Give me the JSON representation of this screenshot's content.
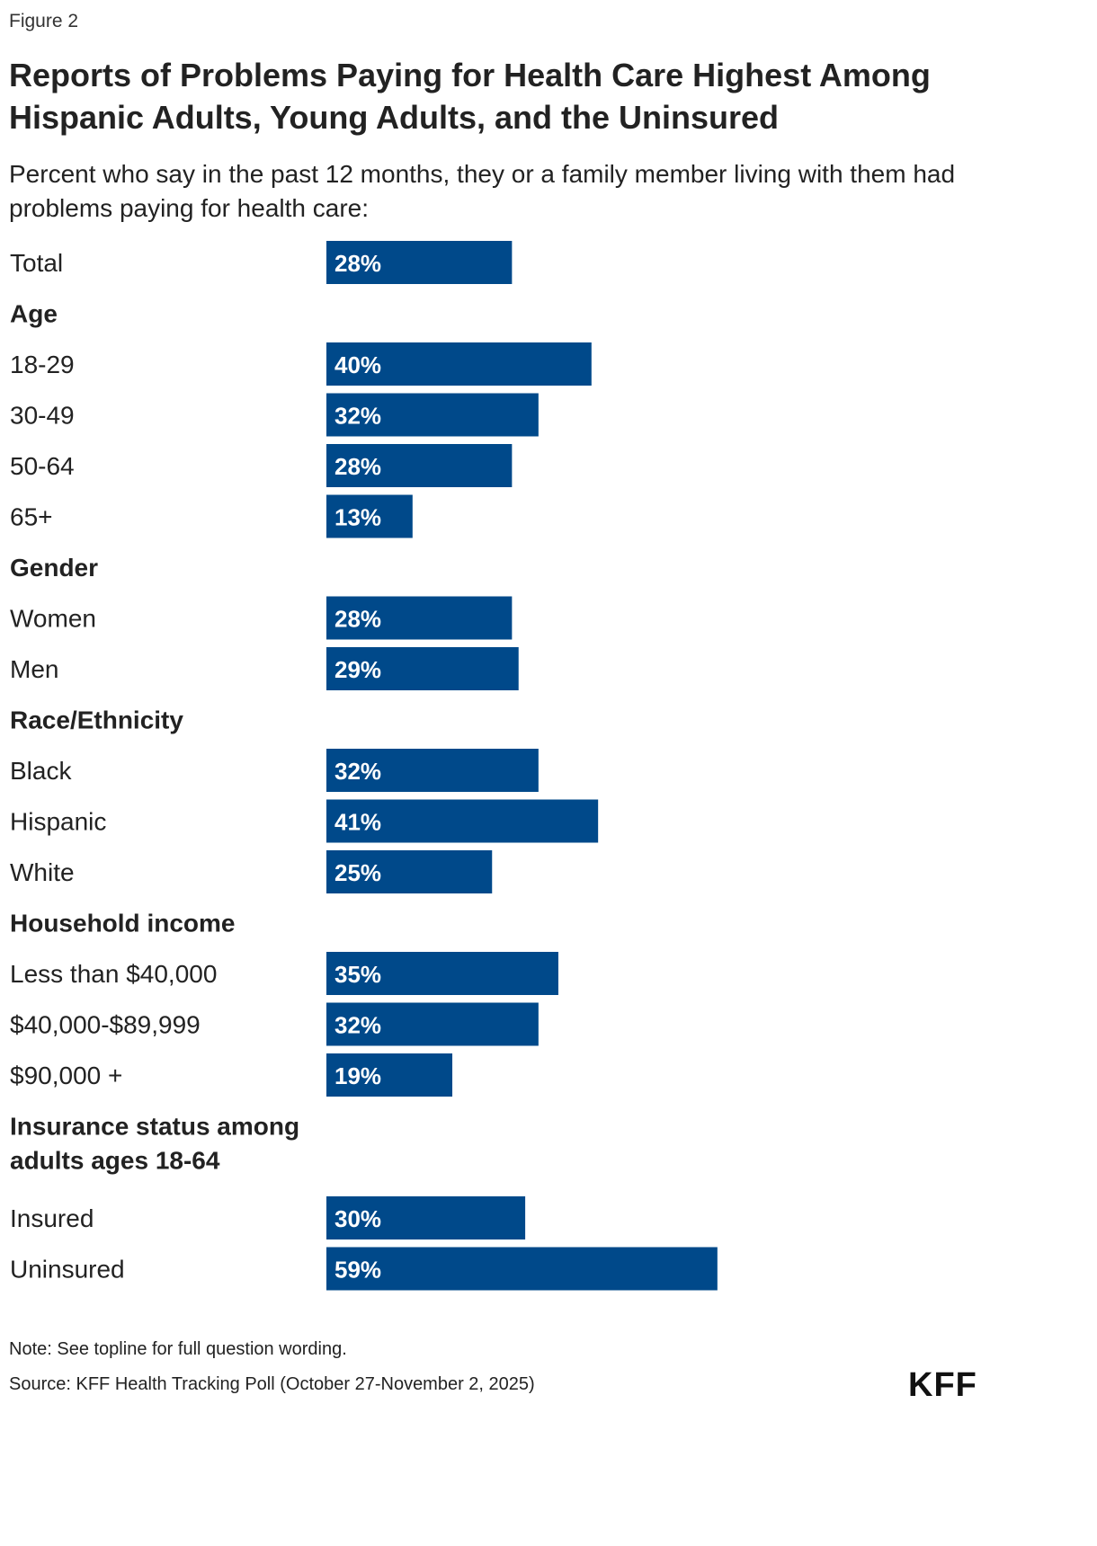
{
  "figure_label": "Figure 2",
  "title": "Reports of Problems Paying for Health Care Highest Among Hispanic Adults, Young Adults, and the Uninsured",
  "subtitle": "Percent who say in the past 12 months, they or a family member living with them had problems paying for health care:",
  "note": "Note: See topline for full question wording.",
  "source": "Source: KFF Health Tracking Poll (October 27-November 2, 2025)",
  "logo": "KFF",
  "colors": {
    "bar": "#00498a",
    "bar_label": "#ffffff",
    "text": "#222222"
  },
  "chart_data": {
    "type": "bar",
    "orientation": "horizontal",
    "value_suffix": "%",
    "xlim": [
      0,
      100
    ],
    "grid": false,
    "rows": [
      {
        "kind": "bar",
        "label": "Total",
        "value": 28
      },
      {
        "kind": "header",
        "label": "Age"
      },
      {
        "kind": "bar",
        "label": "18-29",
        "value": 40
      },
      {
        "kind": "bar",
        "label": "30-49",
        "value": 32
      },
      {
        "kind": "bar",
        "label": "50-64",
        "value": 28
      },
      {
        "kind": "bar",
        "label": "65+",
        "value": 13
      },
      {
        "kind": "header",
        "label": "Gender"
      },
      {
        "kind": "bar",
        "label": "Women",
        "value": 28
      },
      {
        "kind": "bar",
        "label": "Men",
        "value": 29
      },
      {
        "kind": "header",
        "label": "Race/Ethnicity"
      },
      {
        "kind": "bar",
        "label": "Black",
        "value": 32
      },
      {
        "kind": "bar",
        "label": "Hispanic",
        "value": 41
      },
      {
        "kind": "bar",
        "label": "White",
        "value": 25
      },
      {
        "kind": "header",
        "label": "Household income"
      },
      {
        "kind": "bar",
        "label": "Less than $40,000",
        "value": 35
      },
      {
        "kind": "bar",
        "label": "$40,000-$89,999",
        "value": 32
      },
      {
        "kind": "bar",
        "label": "$90,000 +",
        "value": 19
      },
      {
        "kind": "header",
        "label": "Insurance status among adults ages 18-64",
        "lines": [
          "Insurance status among",
          "adults ages 18-64"
        ]
      },
      {
        "kind": "bar",
        "label": "Insured",
        "value": 30
      },
      {
        "kind": "bar",
        "label": "Uninsured",
        "value": 59
      }
    ]
  }
}
